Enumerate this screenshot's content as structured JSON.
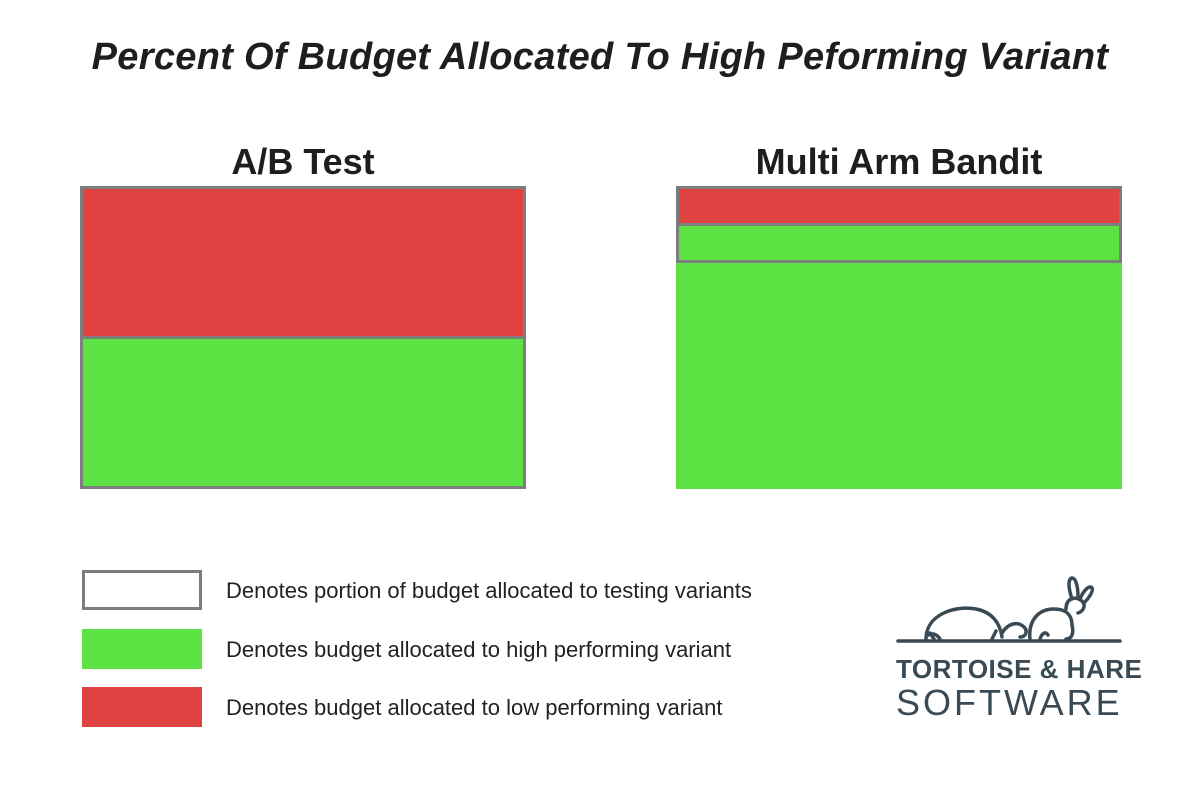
{
  "title": "Percent Of Budget Allocated To High Peforming Variant",
  "colors": {
    "high_performing": "#5ce242",
    "low_performing": "#e04242",
    "testing_outline": "#7d7d7d",
    "logo": "#3a4a55"
  },
  "panels": {
    "ab_test": {
      "heading": "A/B Test",
      "low_performing_fraction": 0.5,
      "high_performing_fraction": 0.5
    },
    "multi_arm_bandit": {
      "heading": "Multi Arm Bandit",
      "low_performing_fraction": 0.125,
      "high_performing_fraction": 0.875,
      "testing_portion_fraction": 0.25
    }
  },
  "legend": [
    {
      "label": "Denotes portion of budget allocated to testing variants",
      "swatch": "outline"
    },
    {
      "label": "Denotes budget allocated to high performing variant",
      "swatch": "green"
    },
    {
      "label": "Denotes budget allocated to low performing variant",
      "swatch": "red"
    }
  ],
  "logo": {
    "line1": "TORTOISE & HARE",
    "line2": "SOFTWARE",
    "icon": "tortoise-and-hare-icon"
  }
}
